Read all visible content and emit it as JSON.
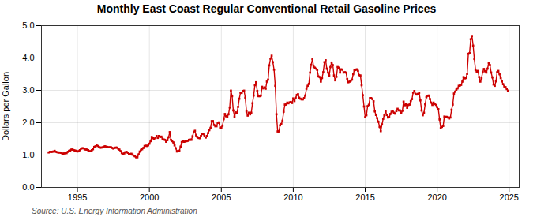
{
  "chart_data": {
    "type": "line",
    "title": "Monthly East Coast Regular Conventional Retail Gasoline Prices",
    "ylabel": "Dollars per Gallon",
    "annotation": "Source: U.S. Energy Information Administration",
    "color": "#cc0000",
    "marker": "square",
    "grid": true,
    "xlim": [
      1992.5,
      2025.7
    ],
    "ylim": [
      0.0,
      5.0
    ],
    "xticks": [
      1995,
      2000,
      2005,
      2010,
      2015,
      2020,
      2025
    ],
    "yticks": [
      {
        "value": 0.0,
        "label": "0.0"
      },
      {
        "value": 1.0,
        "label": "1.0"
      },
      {
        "value": 2.0,
        "label": "2.0"
      },
      {
        "value": 3.0,
        "label": "3.0"
      },
      {
        "value": 4.0,
        "label": "4.0"
      },
      {
        "value": 5.0,
        "label": "5.0"
      }
    ],
    "x": [
      1993.0,
      1993.083,
      1993.167,
      1993.25,
      1993.333,
      1993.417,
      1993.5,
      1993.583,
      1993.667,
      1993.75,
      1993.833,
      1993.917,
      1994.0,
      1994.083,
      1994.167,
      1994.25,
      1994.333,
      1994.417,
      1994.5,
      1994.583,
      1994.667,
      1994.75,
      1994.833,
      1994.917,
      1995.0,
      1995.083,
      1995.167,
      1995.25,
      1995.333,
      1995.417,
      1995.5,
      1995.583,
      1995.667,
      1995.75,
      1995.833,
      1995.917,
      1996.0,
      1996.083,
      1996.167,
      1996.25,
      1996.333,
      1996.417,
      1996.5,
      1996.583,
      1996.667,
      1996.75,
      1996.833,
      1996.917,
      1997.0,
      1997.083,
      1997.167,
      1997.25,
      1997.333,
      1997.417,
      1997.5,
      1997.583,
      1997.667,
      1997.75,
      1997.833,
      1997.917,
      1998.0,
      1998.083,
      1998.167,
      1998.25,
      1998.333,
      1998.417,
      1998.5,
      1998.583,
      1998.667,
      1998.75,
      1998.833,
      1998.917,
      1999.0,
      1999.083,
      1999.167,
      1999.25,
      1999.333,
      1999.417,
      1999.5,
      1999.583,
      1999.667,
      1999.75,
      1999.833,
      1999.917,
      2000.0,
      2000.083,
      2000.167,
      2000.25,
      2000.333,
      2000.417,
      2000.5,
      2000.583,
      2000.667,
      2000.75,
      2000.833,
      2000.917,
      2001.0,
      2001.083,
      2001.167,
      2001.25,
      2001.333,
      2001.417,
      2001.5,
      2001.583,
      2001.667,
      2001.75,
      2001.833,
      2001.917,
      2002.0,
      2002.083,
      2002.167,
      2002.25,
      2002.333,
      2002.417,
      2002.5,
      2002.583,
      2002.667,
      2002.75,
      2002.833,
      2002.917,
      2003.0,
      2003.083,
      2003.167,
      2003.25,
      2003.333,
      2003.417,
      2003.5,
      2003.583,
      2003.667,
      2003.75,
      2003.833,
      2003.917,
      2004.0,
      2004.083,
      2004.167,
      2004.25,
      2004.333,
      2004.417,
      2004.5,
      2004.583,
      2004.667,
      2004.75,
      2004.833,
      2004.917,
      2005.0,
      2005.083,
      2005.167,
      2005.25,
      2005.333,
      2005.417,
      2005.5,
      2005.583,
      2005.667,
      2005.75,
      2005.833,
      2005.917,
      2006.0,
      2006.083,
      2006.167,
      2006.25,
      2006.333,
      2006.417,
      2006.5,
      2006.583,
      2006.667,
      2006.75,
      2006.833,
      2006.917,
      2007.0,
      2007.083,
      2007.167,
      2007.25,
      2007.333,
      2007.417,
      2007.5,
      2007.583,
      2007.667,
      2007.75,
      2007.833,
      2007.917,
      2008.0,
      2008.083,
      2008.167,
      2008.25,
      2008.333,
      2008.417,
      2008.5,
      2008.583,
      2008.667,
      2008.75,
      2008.833,
      2008.917,
      2009.0,
      2009.083,
      2009.167,
      2009.25,
      2009.333,
      2009.417,
      2009.5,
      2009.583,
      2009.667,
      2009.75,
      2009.833,
      2009.917,
      2010.0,
      2010.083,
      2010.167,
      2010.25,
      2010.333,
      2010.417,
      2010.5,
      2010.583,
      2010.667,
      2010.75,
      2010.833,
      2010.917,
      2011.0,
      2011.083,
      2011.167,
      2011.25,
      2011.333,
      2011.417,
      2011.5,
      2011.583,
      2011.667,
      2011.75,
      2011.833,
      2011.917,
      2012.0,
      2012.083,
      2012.167,
      2012.25,
      2012.333,
      2012.417,
      2012.5,
      2012.583,
      2012.667,
      2012.75,
      2012.833,
      2012.917,
      2013.0,
      2013.083,
      2013.167,
      2013.25,
      2013.333,
      2013.417,
      2013.5,
      2013.583,
      2013.667,
      2013.75,
      2013.833,
      2013.917,
      2014.0,
      2014.083,
      2014.167,
      2014.25,
      2014.333,
      2014.417,
      2014.5,
      2014.583,
      2014.667,
      2014.75,
      2014.833,
      2014.917,
      2015.0,
      2015.083,
      2015.167,
      2015.25,
      2015.333,
      2015.417,
      2015.5,
      2015.583,
      2015.667,
      2015.75,
      2015.833,
      2015.917,
      2016.0,
      2016.083,
      2016.167,
      2016.25,
      2016.333,
      2016.417,
      2016.5,
      2016.583,
      2016.667,
      2016.75,
      2016.833,
      2016.917,
      2017.0,
      2017.083,
      2017.167,
      2017.25,
      2017.333,
      2017.417,
      2017.5,
      2017.583,
      2017.667,
      2017.75,
      2017.833,
      2017.917,
      2018.0,
      2018.083,
      2018.167,
      2018.25,
      2018.333,
      2018.417,
      2018.5,
      2018.583,
      2018.667,
      2018.75,
      2018.833,
      2018.917,
      2019.0,
      2019.083,
      2019.167,
      2019.25,
      2019.333,
      2019.417,
      2019.5,
      2019.583,
      2019.667,
      2019.75,
      2019.833,
      2019.917,
      2020.0,
      2020.083,
      2020.167,
      2020.25,
      2020.333,
      2020.417,
      2020.5,
      2020.583,
      2020.667,
      2020.75,
      2020.833,
      2020.917,
      2021.0,
      2021.083,
      2021.167,
      2021.25,
      2021.333,
      2021.417,
      2021.5,
      2021.583,
      2021.667,
      2021.75,
      2021.833,
      2021.917,
      2022.0,
      2022.083,
      2022.167,
      2022.25,
      2022.333,
      2022.417,
      2022.5,
      2022.583,
      2022.667,
      2022.75,
      2022.833,
      2022.917,
      2023.0,
      2023.083,
      2023.167,
      2023.25,
      2023.333,
      2023.417,
      2023.5,
      2023.583,
      2023.667,
      2023.75,
      2023.833,
      2023.917,
      2024.0,
      2024.083,
      2024.167,
      2024.25,
      2024.333,
      2024.417,
      2024.5,
      2024.583,
      2024.667,
      2024.75,
      2024.833,
      2024.917
    ],
    "values": [
      1.08,
      1.1,
      1.1,
      1.1,
      1.11,
      1.13,
      1.1,
      1.09,
      1.08,
      1.08,
      1.07,
      1.06,
      1.04,
      1.05,
      1.06,
      1.06,
      1.1,
      1.13,
      1.14,
      1.17,
      1.17,
      1.15,
      1.14,
      1.13,
      1.11,
      1.12,
      1.15,
      1.2,
      1.21,
      1.21,
      1.18,
      1.17,
      1.17,
      1.15,
      1.12,
      1.12,
      1.15,
      1.18,
      1.25,
      1.27,
      1.3,
      1.28,
      1.25,
      1.23,
      1.23,
      1.24,
      1.26,
      1.27,
      1.26,
      1.25,
      1.24,
      1.24,
      1.24,
      1.22,
      1.2,
      1.22,
      1.23,
      1.23,
      1.2,
      1.17,
      1.12,
      1.06,
      1.03,
      1.05,
      1.09,
      1.1,
      1.07,
      1.03,
      1.03,
      1.04,
      1.01,
      0.98,
      0.96,
      0.93,
      0.93,
      1.02,
      1.11,
      1.16,
      1.18,
      1.22,
      1.28,
      1.29,
      1.28,
      1.3,
      1.35,
      1.43,
      1.56,
      1.52,
      1.5,
      1.54,
      1.59,
      1.53,
      1.59,
      1.56,
      1.57,
      1.5,
      1.48,
      1.47,
      1.41,
      1.46,
      1.55,
      1.71,
      1.47,
      1.43,
      1.39,
      1.3,
      1.21,
      1.11,
      1.13,
      1.13,
      1.26,
      1.4,
      1.42,
      1.41,
      1.42,
      1.43,
      1.44,
      1.47,
      1.48,
      1.47,
      1.58,
      1.72,
      1.75,
      1.61,
      1.56,
      1.53,
      1.52,
      1.59,
      1.66,
      1.65,
      1.58,
      1.54,
      1.59,
      1.68,
      1.77,
      1.84,
      2.05,
      2.05,
      1.93,
      1.89,
      1.89,
      2.0,
      2.01,
      1.84,
      1.85,
      1.91,
      2.11,
      2.27,
      2.2,
      2.19,
      2.26,
      2.47,
      2.99,
      2.82,
      2.38,
      2.19,
      2.32,
      2.29,
      2.49,
      2.74,
      2.93,
      2.92,
      2.98,
      2.99,
      2.77,
      2.35,
      2.22,
      2.31,
      2.26,
      2.31,
      2.6,
      2.84,
      3.16,
      3.25,
      2.98,
      2.82,
      2.82,
      2.84,
      3.11,
      3.06,
      3.09,
      3.05,
      3.27,
      3.33,
      3.77,
      3.98,
      4.07,
      3.87,
      3.64,
      3.14,
      2.26,
      1.73,
      1.73,
      1.92,
      1.96,
      2.06,
      2.34,
      2.56,
      2.56,
      2.62,
      2.6,
      2.63,
      2.64,
      2.61,
      2.75,
      2.67,
      2.77,
      2.86,
      2.88,
      2.77,
      2.74,
      2.72,
      2.72,
      2.76,
      2.84,
      3.05,
      3.14,
      3.2,
      3.55,
      3.79,
      3.97,
      3.73,
      3.7,
      3.67,
      3.63,
      3.43,
      3.41,
      3.27,
      3.38,
      3.56,
      3.87,
      3.93,
      3.67,
      3.55,
      3.46,
      3.72,
      3.86,
      3.78,
      3.46,
      3.31,
      3.42,
      3.72,
      3.7,
      3.55,
      3.65,
      3.64,
      3.55,
      3.56,
      3.55,
      3.35,
      3.25,
      3.27,
      3.3,
      3.33,
      3.5,
      3.62,
      3.63,
      3.65,
      3.6,
      3.47,
      3.46,
      3.16,
      2.85,
      2.5,
      2.17,
      2.23,
      2.51,
      2.55,
      2.76,
      2.76,
      2.73,
      2.66,
      2.35,
      2.24,
      2.14,
      2.03,
      1.87,
      1.74,
      1.95,
      2.12,
      2.23,
      2.35,
      2.24,
      2.16,
      2.17,
      2.27,
      2.34,
      2.35,
      2.31,
      2.28,
      2.36,
      2.43,
      2.38,
      2.38,
      2.3,
      2.37,
      2.65,
      2.54,
      2.57,
      2.46,
      2.55,
      2.56,
      2.67,
      2.73,
      2.93,
      2.98,
      2.89,
      2.87,
      2.89,
      2.92,
      2.69,
      2.38,
      2.23,
      2.31,
      2.57,
      2.79,
      2.83,
      2.84,
      2.73,
      2.62,
      2.55,
      2.62,
      2.58,
      2.55,
      2.48,
      2.42,
      2.1,
      1.83,
      1.87,
      1.9,
      2.19,
      2.18,
      2.18,
      2.16,
      2.13,
      2.16,
      2.4,
      2.56,
      2.9,
      2.96,
      3.02,
      3.06,
      3.14,
      3.15,
      3.17,
      3.27,
      3.41,
      3.37,
      3.38,
      3.51,
      4.13,
      4.15,
      4.58,
      4.68,
      4.38,
      3.97,
      3.63,
      3.58,
      3.6,
      3.41,
      3.27,
      3.38,
      3.57,
      3.66,
      3.59,
      3.55,
      3.67,
      3.84,
      3.78,
      3.55,
      3.4,
      3.18,
      3.14,
      3.28,
      3.56,
      3.6,
      3.5,
      3.38,
      3.28,
      3.19,
      3.12,
      3.1,
      3.04,
      2.99
    ]
  }
}
